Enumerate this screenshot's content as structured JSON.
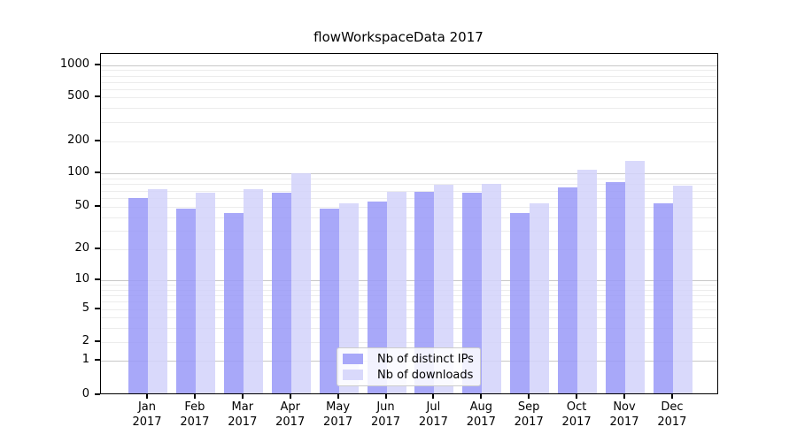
{
  "chart_data": {
    "type": "bar",
    "title": "flowWorkspaceData 2017",
    "categories": [
      "Jan",
      "Feb",
      "Mar",
      "Apr",
      "May",
      "Jun",
      "Jul",
      "Aug",
      "Sep",
      "Oct",
      "Nov",
      "Dec"
    ],
    "year_label": "2017",
    "series": [
      {
        "name": "Nb of distinct IPs",
        "color": "#9999f8",
        "values": [
          58,
          46,
          42,
          65,
          46,
          54,
          66,
          65,
          42,
          72,
          80,
          52
        ]
      },
      {
        "name": "Nb of downloads",
        "color": "#d2d2fa",
        "values": [
          70,
          65,
          69,
          96,
          52,
          66,
          76,
          78,
          52,
          103,
          125,
          75
        ]
      }
    ],
    "xlabel": "",
    "ylabel": "",
    "y_axis": {
      "scale": "symlog",
      "tick_labels": [
        "0",
        "1",
        "2",
        "5",
        "10",
        "20",
        "50",
        "100",
        "200",
        "500",
        "1000"
      ],
      "tick_values": [
        0,
        1,
        2,
        5,
        10,
        20,
        50,
        100,
        200,
        500,
        1000
      ],
      "range": [
        0,
        1000
      ]
    },
    "grid": {
      "on": true,
      "major_values": [
        1,
        10,
        100,
        1000
      ],
      "minor_values": [
        2,
        3,
        4,
        5,
        6,
        7,
        8,
        9,
        20,
        30,
        40,
        50,
        60,
        70,
        80,
        90,
        200,
        300,
        400,
        500,
        600,
        700,
        800,
        900
      ],
      "major_color": "#c8c8c8",
      "minor_color": "#ececec"
    },
    "legend": {
      "position": "lower center",
      "entries": [
        "Nb of distinct IPs",
        "Nb of downloads"
      ]
    },
    "bar_alpha": 0.85
  }
}
